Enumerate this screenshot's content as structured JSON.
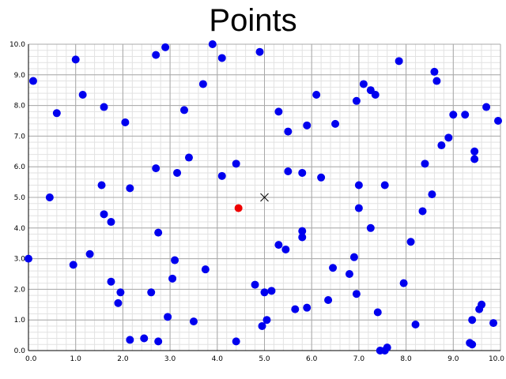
{
  "chart_data": {
    "type": "scatter",
    "title": "Points",
    "xlim": [
      0,
      10
    ],
    "ylim": [
      0,
      10
    ],
    "x_ticks": [
      "0.0",
      "1.0",
      "2.0",
      "3.0",
      "4.0",
      "5.0",
      "6.0",
      "7.0",
      "8.0",
      "9.0",
      "10.0"
    ],
    "y_ticks": [
      "0.0",
      "1.0",
      "2.0",
      "3.0",
      "4.0",
      "5.0",
      "6.0",
      "7.0",
      "8.0",
      "9.0",
      "10.0"
    ],
    "grid": true,
    "colors": {
      "points": "#0000ee",
      "highlight": "#ee0000",
      "marker": "#000000"
    },
    "series": [
      {
        "role": "points",
        "x": [
          0.1,
          1.0,
          0.6,
          1.15,
          1.6,
          2.05,
          0.45,
          0.0,
          0.95,
          1.3,
          1.55,
          1.6,
          1.75,
          1.75,
          1.95,
          1.9,
          2.15,
          2.15,
          2.45,
          2.6,
          2.7,
          2.75,
          2.7,
          2.75,
          2.95,
          2.9,
          3.05,
          3.1,
          3.15,
          3.3,
          3.4,
          3.5,
          3.7,
          3.75,
          3.9,
          4.1,
          4.1,
          4.4,
          4.4,
          4.8,
          4.9,
          4.95,
          5.0,
          5.05,
          5.15,
          5.3,
          5.3,
          5.45,
          5.5,
          5.5,
          5.65,
          5.8,
          5.8,
          5.8,
          5.9,
          5.9,
          6.1,
          6.2,
          6.35,
          6.45,
          6.5,
          6.8,
          6.9,
          6.95,
          6.95,
          7.0,
          7.0,
          7.1,
          7.25,
          7.25,
          7.35,
          7.4,
          7.45,
          7.55,
          7.55,
          7.6,
          7.85,
          7.95,
          8.1,
          8.2,
          8.35,
          8.4,
          8.55,
          8.6,
          8.65,
          8.75,
          8.9,
          9.0,
          9.25,
          9.35,
          9.4,
          9.4,
          9.45,
          9.45,
          9.55,
          9.6,
          9.7,
          9.85,
          9.95
        ],
        "y": [
          8.8,
          9.5,
          7.75,
          8.35,
          7.95,
          7.45,
          5.0,
          3.0,
          2.8,
          3.15,
          5.4,
          4.45,
          4.2,
          2.25,
          1.9,
          1.55,
          5.3,
          0.35,
          0.4,
          1.9,
          5.95,
          3.85,
          9.65,
          0.3,
          1.1,
          9.9,
          2.35,
          2.95,
          5.8,
          7.85,
          6.3,
          0.95,
          8.7,
          2.65,
          10.0,
          9.55,
          5.7,
          6.1,
          0.3,
          2.15,
          9.75,
          0.8,
          1.9,
          1.0,
          1.95,
          7.8,
          3.45,
          3.3,
          7.15,
          5.85,
          1.35,
          3.9,
          3.7,
          5.8,
          7.35,
          1.4,
          8.35,
          5.65,
          1.65,
          2.7,
          7.4,
          2.5,
          3.05,
          8.15,
          1.85,
          5.4,
          4.65,
          8.7,
          8.5,
          4.0,
          8.35,
          1.25,
          0.0,
          5.4,
          0.0,
          0.1,
          9.45,
          2.2,
          3.55,
          0.85,
          4.55,
          6.1,
          5.1,
          9.1,
          8.8,
          6.7,
          6.95,
          7.7,
          7.7,
          0.25,
          0.2,
          1.0,
          6.5,
          6.25,
          1.35,
          1.5,
          7.95,
          0.9,
          7.5
        ]
      },
      {
        "role": "highlight",
        "x": [
          4.45
        ],
        "y": [
          4.65
        ]
      },
      {
        "role": "marker",
        "x": [
          5.0
        ],
        "y": [
          5.0
        ]
      }
    ]
  }
}
